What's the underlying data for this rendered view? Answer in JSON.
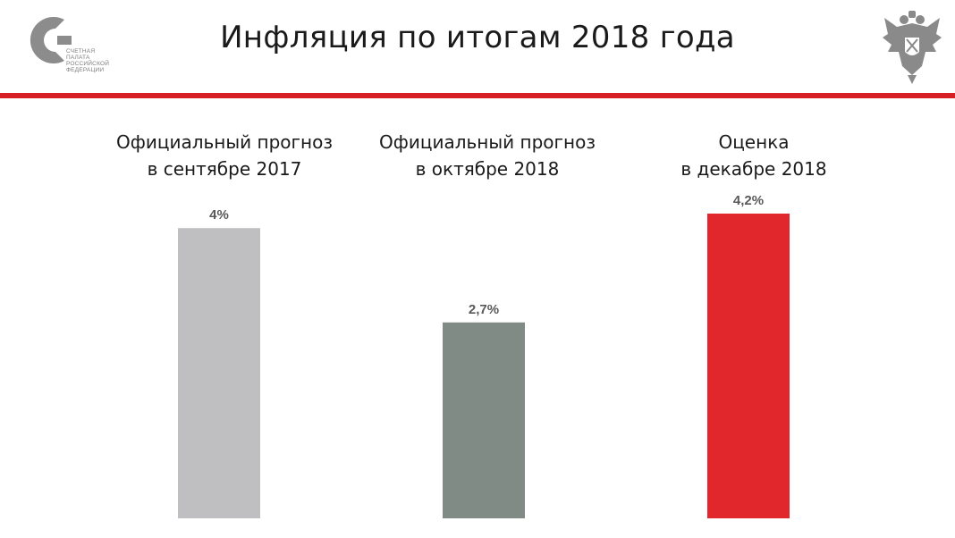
{
  "title": "Инфляция по итогам 2018 года",
  "logo": {
    "lines": [
      "СЧЕТНАЯ",
      "ПАЛАТА",
      "РОССИЙСКОЙ",
      "ФЕДЕРАЦИИ"
    ],
    "color": "#8c8c8c"
  },
  "emblem": {
    "icon": "double-headed-eagle-icon",
    "color": "#8a8a8a"
  },
  "accent_color": "#d91f26",
  "chart_data": {
    "type": "bar",
    "title": "Инфляция по итогам 2018 года",
    "categories": [
      [
        "Официальный прогноз",
        "в сентябре 2017"
      ],
      [
        "Официальный прогноз",
        "в октябре 2018"
      ],
      [
        "Оценка",
        "в декабре 2018"
      ]
    ],
    "values": [
      4.0,
      2.7,
      4.2
    ],
    "value_labels": [
      "4%",
      "2,7%",
      "4,2%"
    ],
    "colors": [
      "#bfbfc1",
      "#808b86",
      "#e1262c"
    ],
    "ylim": [
      0,
      4.2
    ],
    "xlabel": "",
    "ylabel": "",
    "grid": false,
    "legend": "none"
  }
}
